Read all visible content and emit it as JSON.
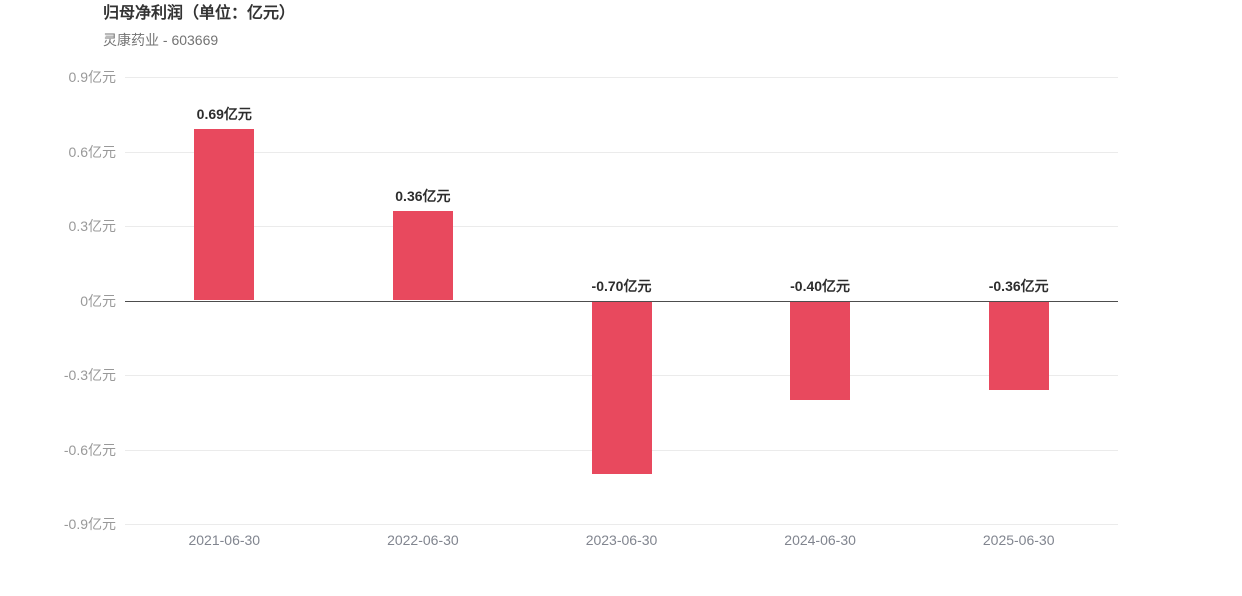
{
  "header": {
    "title": "归母净利润（单位：亿元）",
    "subtitle": "灵康药业 - 603669"
  },
  "chart_data": {
    "type": "bar",
    "title": "归母净利润（单位：亿元）",
    "subtitle": "灵康药业 - 603669",
    "unit": "亿元",
    "categories": [
      "2021-06-30",
      "2022-06-30",
      "2023-06-30",
      "2024-06-30",
      "2025-06-30"
    ],
    "values": [
      0.69,
      0.36,
      -0.7,
      -0.4,
      -0.36
    ],
    "value_labels": [
      "0.69亿元",
      "0.36亿元",
      "-0.70亿元",
      "-0.40亿元",
      "-0.36亿元"
    ],
    "xlabel": "",
    "ylabel": "",
    "ylim": [
      -0.9,
      0.9
    ],
    "y_ticks": [
      0.9,
      0.6,
      0.3,
      0,
      -0.3,
      -0.6,
      -0.9
    ],
    "y_tick_labels": [
      "0.9亿元",
      "0.6亿元",
      "0.3亿元",
      "0亿元",
      "-0.3亿元",
      "-0.6亿元",
      "-0.9亿元"
    ],
    "grid": true,
    "legend_position": "none",
    "bar_color": "#e8495e"
  },
  "colors": {
    "bar": "#e8495e",
    "grid_line": "#ebebeb",
    "zero_line": "#4d4d4d",
    "y_tick_label": "#999999",
    "x_tick_label": "#81858f",
    "value_label": "#2d2d2d",
    "title": "#333333",
    "subtitle": "#737373",
    "background": "#ffffff"
  }
}
